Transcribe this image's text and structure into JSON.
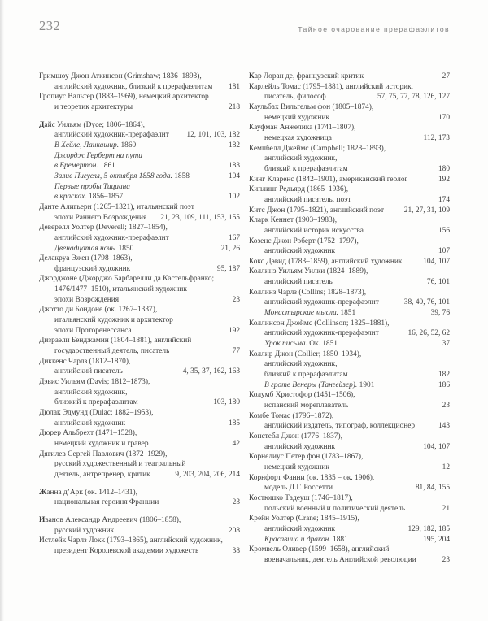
{
  "page_header": {
    "page_number": "232",
    "running_head": "Тайное очарование прерафаэлитов"
  },
  "index": {
    "left_column": [
      {
        "t": "Гримшоу Джон Аткинсон (Grimshaw; 1836–1893),"
      },
      {
        "t": "английский художник, близкий к прерафаэлитам",
        "p": "181",
        "ind": true
      },
      {
        "t": "Гропиус Вальтер (1883–1969), немецкий архитектор"
      },
      {
        "t": "и теоретик архитектуры",
        "p": "218",
        "ind": true
      },
      {
        "t": "Дайс Уильям (Dyce; 1806–1864),",
        "lead": true,
        "gap": true
      },
      {
        "t": "английский художник-прерафаэлит",
        "p": "12, 101, 103, 182",
        "ind": true
      },
      {
        "it": "В Хейле, Ланкашир.",
        "t": " 1860",
        "p": "182",
        "ind": true
      },
      {
        "it": "Джордж Герберт на пути",
        "ind": true
      },
      {
        "it": "в Бремертон.",
        "t": " 1861",
        "p": "183",
        "ind": true
      },
      {
        "it": "Залив Пигуелл, 5 октября 1858 года.",
        "t": " 1858",
        "p": "104",
        "ind": true
      },
      {
        "it": "Первые пробы Тициана",
        "ind": true
      },
      {
        "it": "в красках.",
        "t": " 1856–1857",
        "p": "102",
        "ind": true
      },
      {
        "t": "Данте Алигьери (1265–1321), итальянский поэт"
      },
      {
        "t": "эпохи Раннего Возрождения",
        "p": "21, 23, 109, 111, 153, 155",
        "ind": true
      },
      {
        "t": "Деверелл Уолтер (Deverell; 1827–1854),"
      },
      {
        "t": "английский художник-прерафаэлит",
        "p": "167",
        "ind": true
      },
      {
        "it": "Двенадцатая ночь.",
        "t": " 1850",
        "p": "21, 26",
        "ind": true
      },
      {
        "t": "Делакруа Эжен (1798–1863),"
      },
      {
        "t": "французский художник",
        "p": "95, 187",
        "ind": true
      },
      {
        "t": "Джорджоне (Джорджо Барбарелли да Кастельфранко;"
      },
      {
        "t": "1476/1477–1510), итальянский художник",
        "ind": true
      },
      {
        "t": "эпохи Возрождения",
        "p": "23",
        "ind": true
      },
      {
        "t": "Джотто ди Бондоне (ок. 1267–1337),"
      },
      {
        "t": "итальянский художник и архитектор",
        "ind": true
      },
      {
        "t": "эпохи Проторенессанса",
        "p": "192",
        "ind": true
      },
      {
        "t": "Дизраэли Бенджамин (1804–1881), английский"
      },
      {
        "t": "государственный деятель, писатель",
        "p": "77",
        "ind": true
      },
      {
        "t": "Диккенс Чарлз (1812–1870),"
      },
      {
        "t": "английский писатель",
        "p": "4, 35, 37, 162, 163",
        "ind": true
      },
      {
        "t": "Дэвис Уильям (Davis; 1812–1873),"
      },
      {
        "t": "английский художник,",
        "ind": true
      },
      {
        "t": "близкий к прерафаэлитам",
        "p": "103, 180",
        "ind": true
      },
      {
        "t": "Дюлак Эдмунд (Dulac; 1882–1953),"
      },
      {
        "t": "английский художник",
        "p": "185",
        "ind": true
      },
      {
        "t": "Дюрер Альбрехт (1471–1528),"
      },
      {
        "t": "немецкий художник и гравер",
        "p": "42",
        "ind": true
      },
      {
        "t": "Дягилев Сергей Павлович (1872–1929),"
      },
      {
        "t": "русский художественный и театральный",
        "ind": true
      },
      {
        "t": "деятель, антрепренер, критик",
        "p": "9, 203, 204, 206, 214",
        "ind": true
      },
      {
        "t": "Жанна д’Арк (ок. 1412–1431),",
        "lead": true,
        "gap": true
      },
      {
        "t": "национальная героиня Франции",
        "p": "23",
        "ind": true
      },
      {
        "t": "Иванов Александр Андреевич (1806–1858),",
        "lead": true,
        "gap": true
      },
      {
        "t": "русский художник",
        "p": "208",
        "ind": true
      },
      {
        "t": "Истлейк Чарлз Локк (1793–1865), английский художник,"
      },
      {
        "t": "президент Королевской академии художеств",
        "p": "38",
        "ind": true
      }
    ],
    "right_column": [
      {
        "t": "Кар Лоран де, французский критик",
        "p": "27",
        "lead": true
      },
      {
        "t": "Карлейль Томас (1795–1881), английский историк,"
      },
      {
        "t": "писатель, философ",
        "p": "57, 75, 77, 78, 126, 127",
        "ind": true
      },
      {
        "t": "Каульбах Вильгельм фон (1805–1874),"
      },
      {
        "t": "немецкий художник",
        "p": "170",
        "ind": true
      },
      {
        "t": "Кауфман Анжелика (1741–1807),"
      },
      {
        "t": "немецкая художница",
        "p": "112, 173",
        "ind": true
      },
      {
        "t": "Кемпбелл Джеймс (Campbell; 1828–1893),"
      },
      {
        "t": "английский художник,",
        "ind": true
      },
      {
        "t": "близкий к прерафаэлитам",
        "p": "180",
        "ind": true
      },
      {
        "t": "Кинг Кларенс (1842–1901), американский геолог",
        "p": "192"
      },
      {
        "t": "Киплинг Редьярд (1865–1936),"
      },
      {
        "t": "английский писатель, поэт",
        "p": "174",
        "ind": true
      },
      {
        "t": "Китс Джон (1795–1821), английский поэт",
        "p": "21, 27, 31, 109"
      },
      {
        "t": "Кларк Кеннет (1903–1983),"
      },
      {
        "t": "английский историк искусства",
        "p": "156",
        "ind": true
      },
      {
        "t": "Козенс Джон Роберт (1752–1797),"
      },
      {
        "t": "английский художник",
        "p": "107",
        "ind": true
      },
      {
        "t": "Кокс Дэвид (1783–1859), английский художник",
        "p": "104, 107"
      },
      {
        "t": "Коллинз Уильям Уилки (1824–1889),"
      },
      {
        "t": "английский писатель",
        "p": "76, 101",
        "ind": true
      },
      {
        "t": "Коллинз Чарлз (Collins; 1828–1873),"
      },
      {
        "t": "английский художник-прерафаэлит",
        "p": "38, 40, 76, 101",
        "ind": true
      },
      {
        "it": "Монастырские мысли.",
        "t": " 1851",
        "p": "39, 76",
        "ind": true
      },
      {
        "t": "Коллинсон Джеймс (Collinson; 1825–1881),"
      },
      {
        "t": "английский художник-прерафаэлит",
        "p": "16, 26, 52, 62",
        "ind": true
      },
      {
        "it": "Урок письма.",
        "t": " Ок. 1851",
        "p": "37",
        "ind": true
      },
      {
        "t": "Коллир Джон (Collier; 1850–1934),"
      },
      {
        "t": "английский художник,",
        "ind": true
      },
      {
        "t": "близкий к прерафаэлитам",
        "p": "182",
        "ind": true
      },
      {
        "it": "В гроте Венеры (Тангейзер).",
        "t": " 1901",
        "p": "186",
        "ind": true
      },
      {
        "t": "Колумб Христофор (1451–1506),"
      },
      {
        "t": "испанский мореплаватель",
        "p": "23",
        "ind": true
      },
      {
        "t": "Комбе Томас (1796–1872),"
      },
      {
        "t": "английский издатель, типограф, коллекционер",
        "p": "143",
        "ind": true
      },
      {
        "t": "Констебл Джон (1776–1837),"
      },
      {
        "t": "английский художник",
        "p": "104, 107",
        "ind": true
      },
      {
        "t": "Корнелиус Петер фон (1783–1867),"
      },
      {
        "t": "немецкий художник",
        "p": "12",
        "ind": true
      },
      {
        "t": "Корнфорт Фанни (ок. 1835 – ок. 1906),"
      },
      {
        "t": "модель Д.Г. Россетти",
        "p": "81, 84, 155",
        "ind": true
      },
      {
        "t": "Костюшко Тадеуш (1746–1817),"
      },
      {
        "t": "польский военный и политический деятель",
        "p": "21",
        "ind": true
      },
      {
        "t": "Крейн Уолтер (Crane; 1845–1915),"
      },
      {
        "t": "английский художник",
        "p": "129, 182, 185",
        "ind": true
      },
      {
        "it": "Красавица и дракон.",
        "t": " 1881",
        "p": "195, 204",
        "ind": true
      },
      {
        "t": "Кромвель Оливер (1599–1658), английский"
      },
      {
        "t": "военачальник, деятель Английской революции",
        "p": "23",
        "ind": true
      }
    ]
  }
}
